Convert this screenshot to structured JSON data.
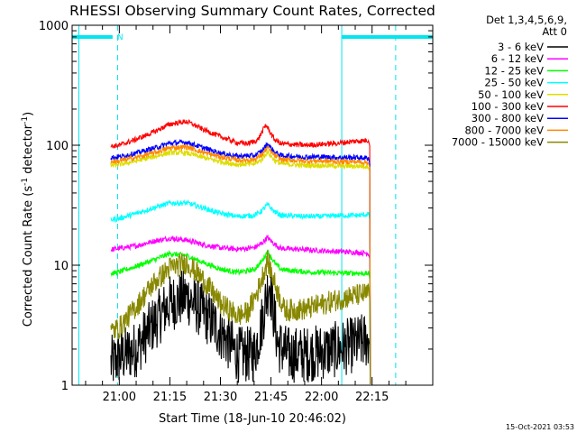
{
  "chart_data": {
    "type": "line",
    "title": "RHESSI Observing Summary Count Rates, Corrected",
    "xlabel": "Start Time (18-Jun-10 20:46:02)",
    "ylabel": "Corrected Count Rate (s⁻¹ detector⁻¹)",
    "ylabel_parts": {
      "main": "Corrected Count Rate (s",
      "sup1": "-1",
      "mid": " detector",
      "sup2": "-1",
      "end": ")"
    },
    "yscale": "log",
    "ylim": [
      1,
      1000
    ],
    "xlim_minutes": [
      -14,
      93
    ],
    "x_ticks": [
      {
        "label": "21:00",
        "min": 0
      },
      {
        "label": "21:15",
        "min": 15
      },
      {
        "label": "21:30",
        "min": 30
      },
      {
        "label": "21:45",
        "min": 45
      },
      {
        "label": "22:00",
        "min": 60
      },
      {
        "label": "22:15",
        "min": 75
      }
    ],
    "y_ticks": [
      {
        "label": "1",
        "value": 1
      },
      {
        "label": "10",
        "value": 10
      },
      {
        "label": "100",
        "value": 100
      },
      {
        "label": "1000",
        "value": 1000
      }
    ],
    "legend": {
      "placement": "right",
      "header": [
        "Det 1,3,4,5,6,9,",
        "Att 0"
      ]
    },
    "flags": {
      "color": "#00e5ee",
      "night_label": "N",
      "night_start_min": -14,
      "night_end_min": -2,
      "day_start_min": 66,
      "dashed_min": [
        -0.5,
        82
      ],
      "solid_min": [
        -12,
        66
      ]
    },
    "series": [
      {
        "name": "3 - 6 keV",
        "color": "#000000",
        "points": [
          [
            -2.5,
            1.5
          ],
          [
            0,
            1.7
          ],
          [
            5,
            2.0
          ],
          [
            10,
            3.2
          ],
          [
            15,
            4.8
          ],
          [
            20,
            5.5
          ],
          [
            25,
            4.0
          ],
          [
            30,
            2.8
          ],
          [
            35,
            1.8
          ],
          [
            40,
            1.8
          ],
          [
            42,
            3.0
          ],
          [
            44.5,
            7.5
          ],
          [
            47,
            2.2
          ],
          [
            50,
            1.8
          ],
          [
            55,
            1.8
          ],
          [
            60,
            1.9
          ],
          [
            65,
            2.0
          ],
          [
            70,
            2.2
          ],
          [
            74,
            2.4
          ]
        ]
      },
      {
        "name": "6 - 12 keV",
        "color": "#ff00ff",
        "points": [
          [
            -2.5,
            13.5
          ],
          [
            0,
            13.8
          ],
          [
            5,
            14.5
          ],
          [
            10,
            15.8
          ],
          [
            15,
            16.8
          ],
          [
            20,
            16.2
          ],
          [
            25,
            14.8
          ],
          [
            30,
            14.0
          ],
          [
            35,
            13.6
          ],
          [
            40,
            14.0
          ],
          [
            42,
            15.0
          ],
          [
            44,
            17.0
          ],
          [
            46,
            15.0
          ],
          [
            48,
            13.8
          ],
          [
            55,
            13.5
          ],
          [
            60,
            13.2
          ],
          [
            65,
            13.0
          ],
          [
            70,
            12.8
          ],
          [
            74,
            12.6
          ]
        ]
      },
      {
        "name": "12 - 25 keV",
        "color": "#00ff00",
        "points": [
          [
            -2.5,
            8.5
          ],
          [
            0,
            8.8
          ],
          [
            5,
            9.8
          ],
          [
            10,
            11.0
          ],
          [
            15,
            12.5
          ],
          [
            20,
            12.0
          ],
          [
            25,
            10.5
          ],
          [
            30,
            9.3
          ],
          [
            35,
            8.7
          ],
          [
            40,
            9.2
          ],
          [
            42,
            10.5
          ],
          [
            44,
            13.0
          ],
          [
            46,
            10.5
          ],
          [
            48,
            9.2
          ],
          [
            55,
            8.8
          ],
          [
            60,
            8.7
          ],
          [
            65,
            8.6
          ],
          [
            70,
            8.6
          ],
          [
            74,
            8.5
          ]
        ]
      },
      {
        "name": "25 - 50 keV",
        "color": "#00ffff",
        "points": [
          [
            -2.5,
            24
          ],
          [
            0,
            24.5
          ],
          [
            5,
            27
          ],
          [
            10,
            30
          ],
          [
            15,
            33
          ],
          [
            20,
            33
          ],
          [
            25,
            30
          ],
          [
            30,
            27
          ],
          [
            35,
            25.5
          ],
          [
            40,
            26
          ],
          [
            42,
            28
          ],
          [
            44,
            32
          ],
          [
            46,
            28
          ],
          [
            48,
            26
          ],
          [
            55,
            25.5
          ],
          [
            60,
            25.5
          ],
          [
            65,
            26
          ],
          [
            70,
            26
          ],
          [
            74,
            26.5
          ]
        ]
      },
      {
        "name": "50 - 100 keV",
        "color": "#dddd00",
        "points": [
          [
            -2.5,
            68
          ],
          [
            0,
            69
          ],
          [
            5,
            74
          ],
          [
            10,
            80
          ],
          [
            15,
            87
          ],
          [
            20,
            86
          ],
          [
            25,
            79
          ],
          [
            30,
            73
          ],
          [
            35,
            69
          ],
          [
            40,
            70
          ],
          [
            42,
            75
          ],
          [
            44,
            88
          ],
          [
            46,
            75
          ],
          [
            48,
            70
          ],
          [
            55,
            68
          ],
          [
            60,
            68
          ],
          [
            65,
            67
          ],
          [
            70,
            67
          ],
          [
            74,
            67
          ]
        ]
      },
      {
        "name": "100 - 300 keV",
        "color": "#ff0000",
        "points": [
          [
            -2.5,
            98
          ],
          [
            0,
            100
          ],
          [
            5,
            112
          ],
          [
            10,
            128
          ],
          [
            15,
            150
          ],
          [
            20,
            158
          ],
          [
            25,
            135
          ],
          [
            30,
            118
          ],
          [
            35,
            105
          ],
          [
            38,
            103
          ],
          [
            41,
            110
          ],
          [
            43.5,
            148
          ],
          [
            46,
            112
          ],
          [
            48,
            103
          ],
          [
            55,
            100
          ],
          [
            60,
            102
          ],
          [
            65,
            104
          ],
          [
            70,
            108
          ],
          [
            74,
            110
          ]
        ]
      },
      {
        "name": "300 - 800 keV",
        "color": "#0000ff",
        "points": [
          [
            -2.5,
            79
          ],
          [
            0,
            80
          ],
          [
            5,
            86
          ],
          [
            10,
            94
          ],
          [
            15,
            104
          ],
          [
            20,
            106
          ],
          [
            25,
            95
          ],
          [
            30,
            86
          ],
          [
            35,
            81
          ],
          [
            40,
            82
          ],
          [
            42,
            88
          ],
          [
            44,
            103
          ],
          [
            46,
            88
          ],
          [
            48,
            82
          ],
          [
            55,
            80
          ],
          [
            60,
            80
          ],
          [
            65,
            79
          ],
          [
            70,
            79
          ],
          [
            74,
            78
          ]
        ]
      },
      {
        "name": "800 - 7000 keV",
        "color": "#ff8800",
        "points": [
          [
            -2.5,
            73
          ],
          [
            0,
            74
          ],
          [
            5,
            79
          ],
          [
            10,
            86
          ],
          [
            15,
            95
          ],
          [
            20,
            97
          ],
          [
            25,
            87
          ],
          [
            30,
            80
          ],
          [
            35,
            75
          ],
          [
            40,
            76
          ],
          [
            42,
            82
          ],
          [
            44,
            95
          ],
          [
            46,
            82
          ],
          [
            48,
            76
          ],
          [
            55,
            74
          ],
          [
            60,
            74
          ],
          [
            65,
            73
          ],
          [
            70,
            73
          ],
          [
            74,
            72
          ]
        ]
      },
      {
        "name": "7000 - 15000 keV",
        "color": "#888800",
        "points": [
          [
            -2.5,
            2.8
          ],
          [
            0,
            3.0
          ],
          [
            5,
            4.5
          ],
          [
            10,
            7.0
          ],
          [
            15,
            9.5
          ],
          [
            20,
            10.5
          ],
          [
            25,
            7.5
          ],
          [
            30,
            4.8
          ],
          [
            35,
            3.8
          ],
          [
            38,
            4.0
          ],
          [
            41,
            6.0
          ],
          [
            44,
            11.0
          ],
          [
            46.5,
            6.5
          ],
          [
            49,
            4.2
          ],
          [
            55,
            4.3
          ],
          [
            60,
            4.7
          ],
          [
            65,
            5.2
          ],
          [
            70,
            5.6
          ],
          [
            74,
            5.8
          ]
        ]
      }
    ]
  },
  "footer": {
    "timestamp": "15-Oct-2021 03:53"
  }
}
